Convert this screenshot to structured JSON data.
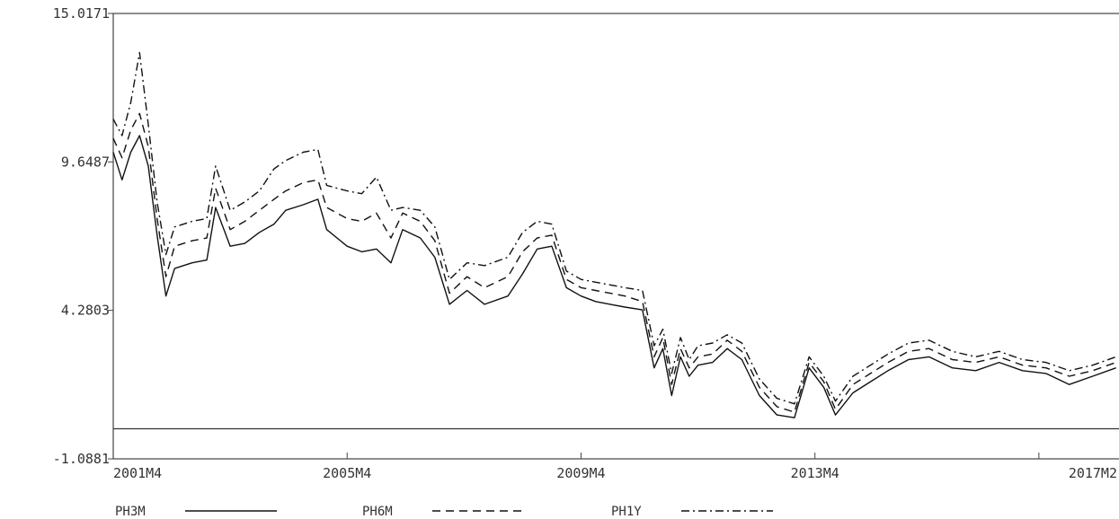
{
  "chart_data": {
    "type": "line",
    "title": "",
    "xlabel": "",
    "ylabel": "",
    "xlim": [
      2001.25,
      2018.45
    ],
    "ylim": [
      -1.0881,
      15.0171
    ],
    "y_ticks": [
      "15.0171",
      "9.6487",
      "4.2803",
      "-1.0881"
    ],
    "y_tick_values": [
      15.0171,
      9.6487,
      4.2803,
      -1.0881
    ],
    "x_ticks": [
      "2001M4",
      "2005M4",
      "2009M4",
      "2013M4",
      "2017M2"
    ],
    "x_tick_values": [
      2001.25,
      2005.25,
      2009.25,
      2013.25,
      2017.08
    ],
    "zero_line": 0,
    "grid": false,
    "legend_position": "bottom",
    "series": [
      {
        "name": "PH3M",
        "style": "solid",
        "color": "#111111",
        "points": [
          [
            2001.25,
            10.0
          ],
          [
            2001.4,
            9.0
          ],
          [
            2001.55,
            10.0
          ],
          [
            2001.7,
            10.6
          ],
          [
            2001.85,
            9.5
          ],
          [
            2002.0,
            7.0
          ],
          [
            2002.15,
            4.8
          ],
          [
            2002.3,
            5.8
          ],
          [
            2002.6,
            6.0
          ],
          [
            2002.85,
            6.1
          ],
          [
            2003.0,
            8.0
          ],
          [
            2003.25,
            6.6
          ],
          [
            2003.5,
            6.7
          ],
          [
            2003.75,
            7.1
          ],
          [
            2004.0,
            7.4
          ],
          [
            2004.2,
            7.9
          ],
          [
            2004.5,
            8.1
          ],
          [
            2004.75,
            8.3
          ],
          [
            2004.9,
            7.2
          ],
          [
            2005.25,
            6.6
          ],
          [
            2005.5,
            6.4
          ],
          [
            2005.75,
            6.5
          ],
          [
            2006.0,
            6.0
          ],
          [
            2006.2,
            7.2
          ],
          [
            2006.5,
            6.9
          ],
          [
            2006.75,
            6.2
          ],
          [
            2007.0,
            4.5
          ],
          [
            2007.3,
            5.0
          ],
          [
            2007.6,
            4.5
          ],
          [
            2008.0,
            4.8
          ],
          [
            2008.25,
            5.6
          ],
          [
            2008.5,
            6.5
          ],
          [
            2008.75,
            6.6
          ],
          [
            2009.0,
            5.1
          ],
          [
            2009.25,
            4.8
          ],
          [
            2009.5,
            4.6
          ],
          [
            2009.75,
            4.5
          ],
          [
            2010.0,
            4.4
          ],
          [
            2010.3,
            4.3
          ],
          [
            2010.5,
            2.2
          ],
          [
            2010.65,
            2.9
          ],
          [
            2010.8,
            1.2
          ],
          [
            2010.95,
            2.6
          ],
          [
            2011.1,
            1.9
          ],
          [
            2011.25,
            2.3
          ],
          [
            2011.5,
            2.4
          ],
          [
            2011.75,
            2.9
          ],
          [
            2012.0,
            2.5
          ],
          [
            2012.3,
            1.2
          ],
          [
            2012.6,
            0.5
          ],
          [
            2012.9,
            0.4
          ],
          [
            2013.15,
            2.2
          ],
          [
            2013.4,
            1.5
          ],
          [
            2013.6,
            0.5
          ],
          [
            2013.9,
            1.3
          ],
          [
            2014.2,
            1.7
          ],
          [
            2014.5,
            2.1
          ],
          [
            2014.85,
            2.5
          ],
          [
            2015.2,
            2.6
          ],
          [
            2015.6,
            2.2
          ],
          [
            2016.0,
            2.1
          ],
          [
            2016.4,
            2.4
          ],
          [
            2016.8,
            2.1
          ],
          [
            2017.2,
            2.0
          ],
          [
            2017.6,
            1.6
          ],
          [
            2018.0,
            1.9
          ],
          [
            2018.4,
            2.2
          ]
        ]
      },
      {
        "name": "PH6M",
        "style": "dashed",
        "color": "#111111",
        "points": [
          [
            2001.25,
            10.5
          ],
          [
            2001.4,
            9.8
          ],
          [
            2001.55,
            10.8
          ],
          [
            2001.7,
            11.4
          ],
          [
            2001.85,
            10.2
          ],
          [
            2002.0,
            7.6
          ],
          [
            2002.15,
            5.5
          ],
          [
            2002.3,
            6.6
          ],
          [
            2002.6,
            6.8
          ],
          [
            2002.85,
            6.9
          ],
          [
            2003.0,
            8.7
          ],
          [
            2003.25,
            7.2
          ],
          [
            2003.5,
            7.5
          ],
          [
            2003.75,
            7.9
          ],
          [
            2004.0,
            8.3
          ],
          [
            2004.2,
            8.6
          ],
          [
            2004.5,
            8.9
          ],
          [
            2004.75,
            9.0
          ],
          [
            2004.9,
            8.0
          ],
          [
            2005.25,
            7.6
          ],
          [
            2005.5,
            7.5
          ],
          [
            2005.75,
            7.8
          ],
          [
            2006.0,
            6.9
          ],
          [
            2006.2,
            7.8
          ],
          [
            2006.5,
            7.5
          ],
          [
            2006.75,
            6.8
          ],
          [
            2007.0,
            4.9
          ],
          [
            2007.3,
            5.5
          ],
          [
            2007.6,
            5.1
          ],
          [
            2008.0,
            5.5
          ],
          [
            2008.25,
            6.4
          ],
          [
            2008.5,
            6.9
          ],
          [
            2008.75,
            7.0
          ],
          [
            2009.0,
            5.4
          ],
          [
            2009.25,
            5.1
          ],
          [
            2009.5,
            5.0
          ],
          [
            2009.75,
            4.9
          ],
          [
            2010.0,
            4.8
          ],
          [
            2010.3,
            4.6
          ],
          [
            2010.5,
            2.6
          ],
          [
            2010.65,
            3.3
          ],
          [
            2010.8,
            1.6
          ],
          [
            2010.95,
            2.9
          ],
          [
            2011.1,
            2.2
          ],
          [
            2011.25,
            2.6
          ],
          [
            2011.5,
            2.7
          ],
          [
            2011.75,
            3.2
          ],
          [
            2012.0,
            2.8
          ],
          [
            2012.3,
            1.5
          ],
          [
            2012.6,
            0.8
          ],
          [
            2012.9,
            0.6
          ],
          [
            2013.15,
            2.4
          ],
          [
            2013.4,
            1.7
          ],
          [
            2013.6,
            0.7
          ],
          [
            2013.9,
            1.6
          ],
          [
            2014.2,
            2.0
          ],
          [
            2014.5,
            2.4
          ],
          [
            2014.85,
            2.8
          ],
          [
            2015.2,
            2.9
          ],
          [
            2015.6,
            2.5
          ],
          [
            2016.0,
            2.4
          ],
          [
            2016.4,
            2.6
          ],
          [
            2016.8,
            2.3
          ],
          [
            2017.2,
            2.2
          ],
          [
            2017.6,
            1.9
          ],
          [
            2018.0,
            2.1
          ],
          [
            2018.4,
            2.4
          ]
        ]
      },
      {
        "name": "PH1Y",
        "style": "dashdot",
        "color": "#111111",
        "points": [
          [
            2001.25,
            11.2
          ],
          [
            2001.4,
            10.6
          ],
          [
            2001.55,
            11.8
          ],
          [
            2001.7,
            13.6
          ],
          [
            2001.85,
            11.0
          ],
          [
            2002.0,
            8.2
          ],
          [
            2002.15,
            6.3
          ],
          [
            2002.3,
            7.3
          ],
          [
            2002.6,
            7.5
          ],
          [
            2002.85,
            7.6
          ],
          [
            2003.0,
            9.5
          ],
          [
            2003.25,
            7.9
          ],
          [
            2003.5,
            8.2
          ],
          [
            2003.75,
            8.6
          ],
          [
            2004.0,
            9.4
          ],
          [
            2004.2,
            9.7
          ],
          [
            2004.5,
            10.0
          ],
          [
            2004.75,
            10.1
          ],
          [
            2004.9,
            8.8
          ],
          [
            2005.25,
            8.6
          ],
          [
            2005.5,
            8.5
          ],
          [
            2005.75,
            9.1
          ],
          [
            2006.0,
            7.9
          ],
          [
            2006.2,
            8.0
          ],
          [
            2006.5,
            7.9
          ],
          [
            2006.75,
            7.3
          ],
          [
            2007.0,
            5.4
          ],
          [
            2007.3,
            6.0
          ],
          [
            2007.6,
            5.9
          ],
          [
            2008.0,
            6.2
          ],
          [
            2008.25,
            7.1
          ],
          [
            2008.5,
            7.5
          ],
          [
            2008.75,
            7.4
          ],
          [
            2009.0,
            5.7
          ],
          [
            2009.25,
            5.4
          ],
          [
            2009.5,
            5.3
          ],
          [
            2009.75,
            5.2
          ],
          [
            2010.0,
            5.1
          ],
          [
            2010.3,
            5.0
          ],
          [
            2010.5,
            3.0
          ],
          [
            2010.65,
            3.6
          ],
          [
            2010.8,
            2.0
          ],
          [
            2010.95,
            3.3
          ],
          [
            2011.1,
            2.5
          ],
          [
            2011.25,
            3.0
          ],
          [
            2011.5,
            3.1
          ],
          [
            2011.75,
            3.4
          ],
          [
            2012.0,
            3.1
          ],
          [
            2012.3,
            1.8
          ],
          [
            2012.6,
            1.1
          ],
          [
            2012.9,
            0.9
          ],
          [
            2013.15,
            2.6
          ],
          [
            2013.4,
            1.9
          ],
          [
            2013.6,
            1.0
          ],
          [
            2013.9,
            1.9
          ],
          [
            2014.2,
            2.3
          ],
          [
            2014.5,
            2.7
          ],
          [
            2014.85,
            3.1
          ],
          [
            2015.2,
            3.2
          ],
          [
            2015.6,
            2.8
          ],
          [
            2016.0,
            2.6
          ],
          [
            2016.4,
            2.8
          ],
          [
            2016.8,
            2.5
          ],
          [
            2017.2,
            2.4
          ],
          [
            2017.6,
            2.1
          ],
          [
            2018.0,
            2.3
          ],
          [
            2018.4,
            2.6
          ]
        ]
      }
    ]
  }
}
